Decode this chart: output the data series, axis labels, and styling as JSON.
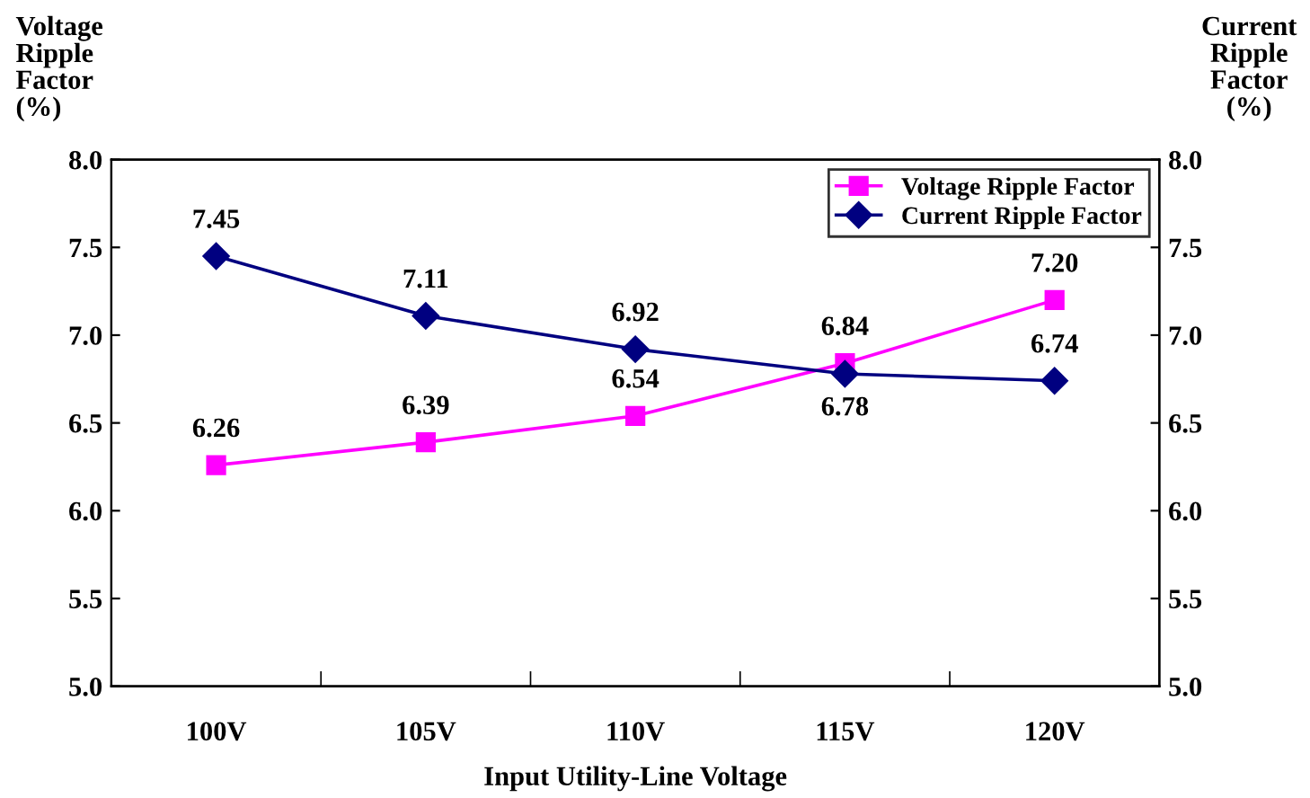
{
  "chart_data": {
    "type": "line",
    "xlabel": "Input Utility-Line Voltage",
    "ylabel": "Voltage Ripple Factor (%)",
    "y2label": "Current Ripple Factor (%)",
    "categories": [
      "100V",
      "105V",
      "110V",
      "115V",
      "120V"
    ],
    "series": [
      {
        "name": "Voltage Ripple Factor",
        "color": "#ff00ff",
        "marker": "square",
        "values": [
          6.26,
          6.39,
          6.54,
          6.84,
          7.2
        ],
        "value_labels": [
          "6.26",
          "6.39",
          "6.54",
          "6.84",
          "7.20"
        ]
      },
      {
        "name": "Current Ripple Factor",
        "color": "#000080",
        "marker": "diamond",
        "values": [
          7.45,
          7.11,
          6.92,
          6.78,
          6.74
        ],
        "value_labels": [
          "7.45",
          "7.11",
          "6.92",
          "6.78",
          "6.74"
        ]
      }
    ],
    "ylim": [
      5,
      8
    ],
    "yticks": [
      {
        "value": 5,
        "label": "5.0"
      },
      {
        "value": 5.5,
        "label": "5.5"
      },
      {
        "value": 6,
        "label": "6.0"
      },
      {
        "value": 6.5,
        "label": "6.5"
      },
      {
        "value": 7,
        "label": "7.0"
      },
      {
        "value": 7.5,
        "label": "7.5"
      },
      {
        "value": 8,
        "label": "8.0"
      }
    ],
    "y2lim": [
      5,
      8
    ],
    "y2ticks": [
      {
        "value": 5,
        "label": "5.0"
      },
      {
        "value": 5.5,
        "label": "5.5"
      },
      {
        "value": 6,
        "label": "6.0"
      },
      {
        "value": 6.5,
        "label": "6.5"
      },
      {
        "value": 7,
        "label": "7.0"
      },
      {
        "value": 7.5,
        "label": "7.5"
      },
      {
        "value": 8,
        "label": "8.0"
      }
    ],
    "grid": false,
    "legend": "top right",
    "line_style": "solid"
  }
}
